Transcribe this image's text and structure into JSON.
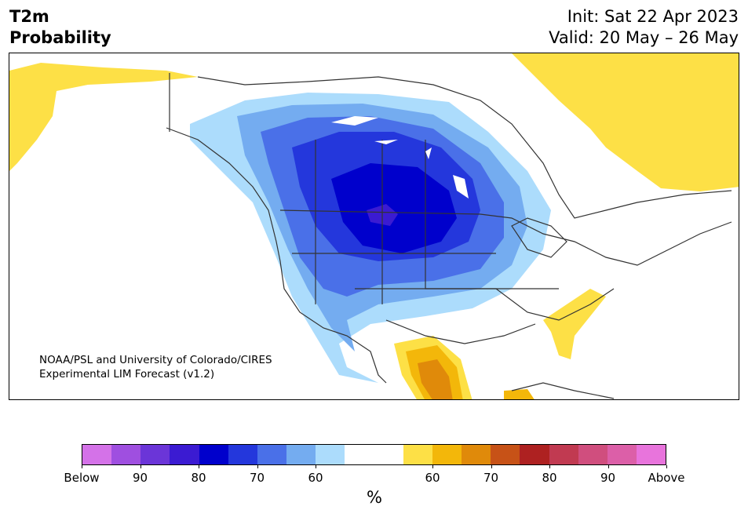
{
  "header": {
    "title_line1": "T2m",
    "title_line2": "Probability",
    "init": "Init: Sat 22 Apr 2023",
    "valid": "Valid: 20 May – 26 May"
  },
  "map": {
    "credit_line1": "NOAA/PSL and University of Colorado/CIRES",
    "credit_line2": "Experimental LIM Forecast (v1.2)"
  },
  "colorbar": {
    "unit": "%",
    "colors": [
      "#d472e8",
      "#9f4fe0",
      "#6b35d8",
      "#3b1bd2",
      "#0000cc",
      "#2437dc",
      "#4a70e8",
      "#74acf0",
      "#acdcfc",
      "#ffffff",
      "#ffffff",
      "#fde046",
      "#f3b70a",
      "#e08a0a",
      "#c75217",
      "#ae2121",
      "#c13a51",
      "#d04e7e",
      "#dc5fa8",
      "#e874dc"
    ],
    "tick_labels": [
      "Below",
      "90",
      "80",
      "70",
      "60",
      "60",
      "70",
      "80",
      "90",
      "Above"
    ]
  }
}
